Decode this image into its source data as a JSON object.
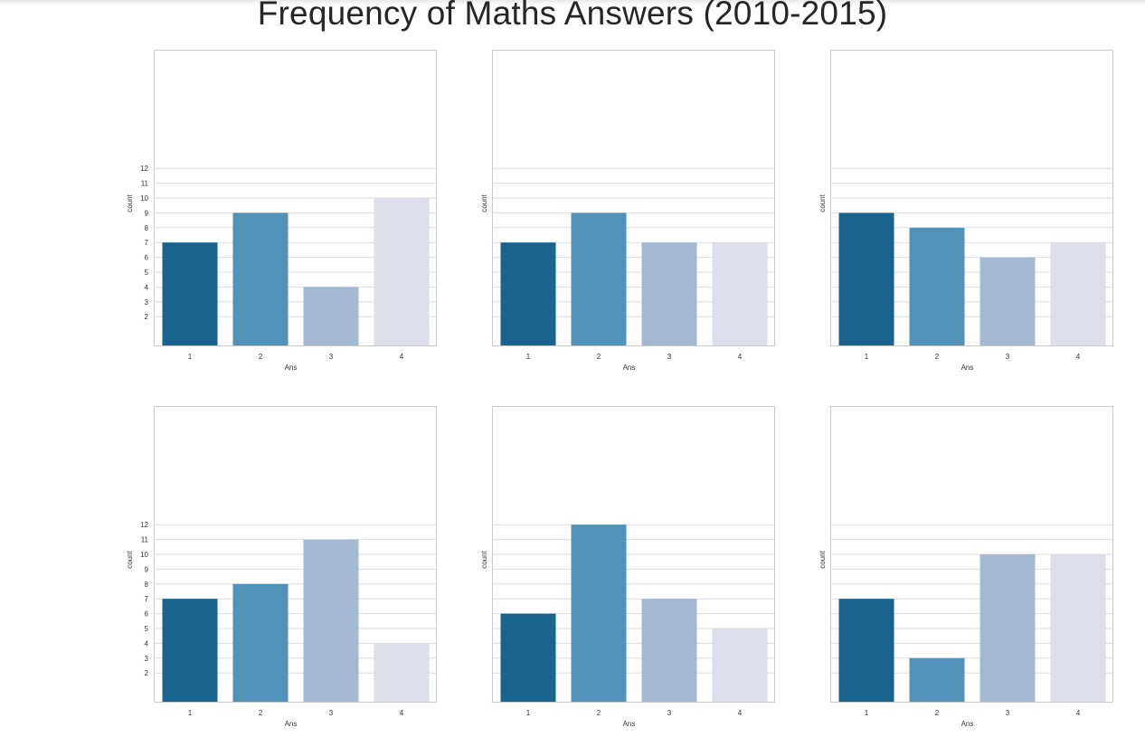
{
  "title": "Frequency of Maths Answers (2010-2015)",
  "chart_data": [
    {
      "type": "bar",
      "categories": [
        "1",
        "2",
        "3",
        "4"
      ],
      "values": [
        7,
        9,
        4,
        10
      ],
      "xlabel": "Ans",
      "ylabel": "count",
      "yticks": [
        2,
        3,
        4,
        5,
        6,
        7,
        8,
        9,
        10,
        11,
        12
      ],
      "show_ytick_labels": true,
      "ylim": [
        0,
        20
      ]
    },
    {
      "type": "bar",
      "categories": [
        "1",
        "2",
        "3",
        "4"
      ],
      "values": [
        7,
        9,
        7,
        7
      ],
      "xlabel": "Ans",
      "ylabel": "count",
      "yticks": [
        2,
        3,
        4,
        5,
        6,
        7,
        8,
        9,
        10,
        11,
        12
      ],
      "show_ytick_labels": false,
      "ylim": [
        0,
        20
      ]
    },
    {
      "type": "bar",
      "categories": [
        "1",
        "2",
        "3",
        "4"
      ],
      "values": [
        9,
        8,
        6,
        7
      ],
      "xlabel": "Ans",
      "ylabel": "count",
      "yticks": [
        2,
        3,
        4,
        5,
        6,
        7,
        8,
        9,
        10,
        11,
        12
      ],
      "show_ytick_labels": false,
      "ylim": [
        0,
        20
      ]
    },
    {
      "type": "bar",
      "categories": [
        "1",
        "2",
        "3",
        "4"
      ],
      "values": [
        7,
        8,
        11,
        4
      ],
      "xlabel": "Ans",
      "ylabel": "count",
      "yticks": [
        2,
        3,
        4,
        5,
        6,
        7,
        8,
        9,
        10,
        11,
        12
      ],
      "show_ytick_labels": true,
      "ylim": [
        0,
        20
      ]
    },
    {
      "type": "bar",
      "categories": [
        "1",
        "2",
        "3",
        "4"
      ],
      "values": [
        6,
        12,
        7,
        5
      ],
      "xlabel": "Ans",
      "ylabel": "count",
      "yticks": [
        2,
        3,
        4,
        5,
        6,
        7,
        8,
        9,
        10,
        11,
        12
      ],
      "show_ytick_labels": false,
      "ylim": [
        0,
        20
      ]
    },
    {
      "type": "bar",
      "categories": [
        "1",
        "2",
        "3",
        "4"
      ],
      "values": [
        7,
        3,
        10,
        10
      ],
      "xlabel": "Ans",
      "ylabel": "count",
      "yticks": [
        2,
        3,
        4,
        5,
        6,
        7,
        8,
        9,
        10,
        11,
        12
      ],
      "show_ytick_labels": false,
      "ylim": [
        0,
        20
      ]
    }
  ],
  "colors": {
    "bars": [
      "#19638f",
      "#5193b8",
      "#a3b8d3",
      "#dcdeeb"
    ],
    "grid": "#dddddd",
    "frame": "#cccccc",
    "text": "#333333"
  }
}
